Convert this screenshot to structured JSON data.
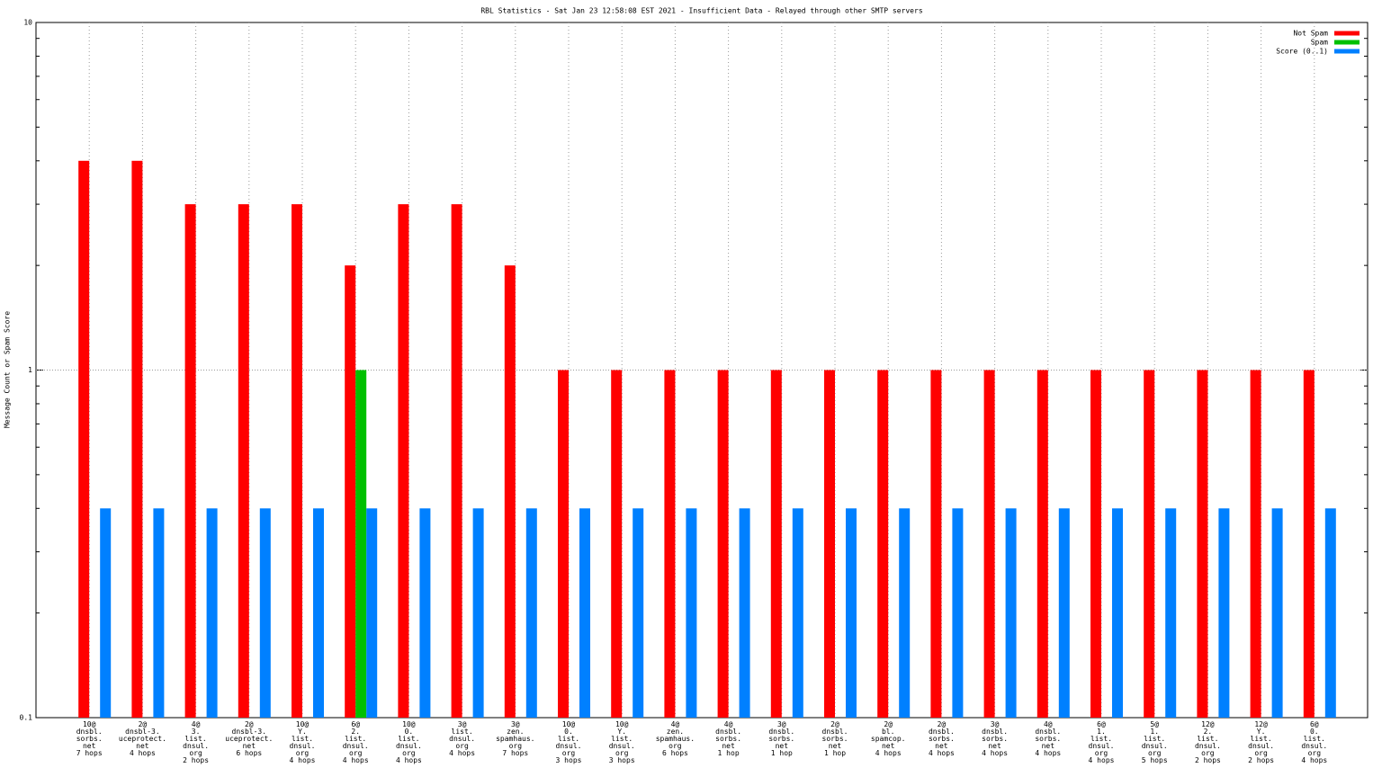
{
  "chart_data": {
    "type": "bar",
    "title": "RBL Statistics - Sat Jan 23 12:58:08 EST 2021 - Insufficient Data - Relayed through other SMTP servers",
    "y_label": "Message Count or Spam Score",
    "log_scale": true,
    "grid": true,
    "legend_position": "top-right",
    "ylim": [
      0.1,
      10
    ],
    "yticks": [
      0.1,
      1,
      10
    ],
    "categories": [
      "10@\ndnsbl.\nsorbs.\nnet\n7 hops",
      "2@\ndnsbl-3.\nuceprotect.\nnet\n4 hops",
      "4@\n3.\nlist.\ndnsul.\norg\n2 hops",
      "2@\ndnsbl-3.\nuceprotect.\nnet\n6 hops",
      "10@\nY.\nlist.\ndnsul.\norg\n4 hops",
      "6@\n2.\nlist.\ndnsul.\norg\n4 hops",
      "10@\n0.\nlist.\ndnsul.\norg\n4 hops",
      "3@\nlist.\ndnsul.\norg\n4 hops",
      "3@\nzen.\nspamhaus.\norg\n7 hops",
      "10@\n0.\nlist.\ndnsul.\norg\n3 hops",
      "10@\nY.\nlist.\ndnsul.\norg\n3 hops",
      "4@\nzen.\nspamhaus.\norg\n6 hops",
      "4@\ndnsbl.\nsorbs.\nnet\n1 hop",
      "3@\ndnsbl.\nsorbs.\nnet\n1 hop",
      "2@\ndnsbl.\nsorbs.\nnet\n1 hop",
      "2@\nbl.\nspamcop.\nnet\n4 hops",
      "2@\ndnsbl.\nsorbs.\nnet\n4 hops",
      "3@\ndnsbl.\nsorbs.\nnet\n4 hops",
      "4@\ndnsbl.\nsorbs.\nnet\n4 hops",
      "6@\n1.\nlist.\ndnsul.\norg\n4 hops",
      "5@\n1.\nlist.\ndnsul.\norg\n5 hops",
      "12@\n2.\nlist.\ndnsul.\norg\n2 hops",
      "12@\nY.\nlist.\ndnsul.\norg\n2 hops",
      "6@\n0.\nlist.\ndnsul.\norg\n4 hops"
    ],
    "series": [
      {
        "name": "Not Spam",
        "color": "#ff0000",
        "values": [
          4,
          4,
          3,
          3,
          3,
          2,
          3,
          3,
          2,
          1,
          1,
          1,
          1,
          1,
          1,
          1,
          1,
          1,
          1,
          1,
          1,
          1,
          1,
          1
        ]
      },
      {
        "name": "Spam",
        "color": "#00c000",
        "values": [
          null,
          null,
          null,
          null,
          null,
          1,
          null,
          null,
          null,
          null,
          null,
          null,
          null,
          null,
          null,
          null,
          null,
          null,
          null,
          null,
          null,
          null,
          null,
          null
        ]
      },
      {
        "name": "Score (0..1)",
        "color": "#0080ff",
        "values": [
          0.4,
          0.4,
          0.4,
          0.4,
          0.4,
          0.4,
          0.4,
          0.4,
          0.4,
          0.4,
          0.4,
          0.4,
          0.4,
          0.4,
          0.4,
          0.4,
          0.4,
          0.4,
          0.4,
          0.4,
          0.4,
          0.4,
          0.4,
          0.4
        ]
      }
    ]
  }
}
